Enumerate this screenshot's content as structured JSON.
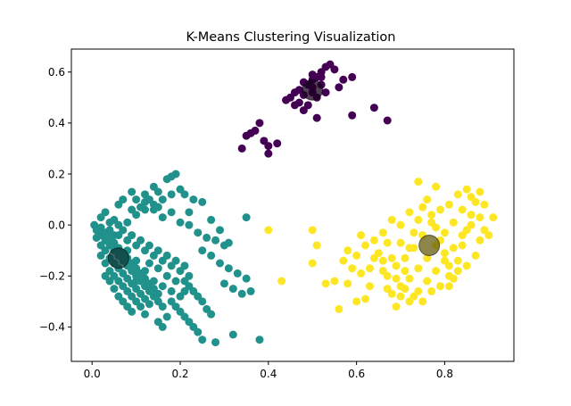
{
  "chart_data": {
    "type": "scatter",
    "title": "K-Means Clustering Visualization",
    "xlabel": "",
    "ylabel": "",
    "xlim": [
      -0.047,
      0.957
    ],
    "ylim": [
      -0.535,
      0.69
    ],
    "xticks": [
      0.0,
      0.2,
      0.4,
      0.6,
      0.8
    ],
    "xtick_labels": [
      "0.0",
      "0.2",
      "0.4",
      "0.6",
      "0.8"
    ],
    "yticks": [
      -0.4,
      -0.2,
      0.0,
      0.2,
      0.4,
      0.6
    ],
    "ytick_labels": [
      "−0.4",
      "−0.2",
      "0.0",
      "0.2",
      "0.4",
      "0.6"
    ],
    "grid": false,
    "legend": "none",
    "series": [
      {
        "color": "#440154",
        "points": [
          [
            0.5,
            0.57
          ],
          [
            0.52,
            0.6
          ],
          [
            0.53,
            0.62
          ],
          [
            0.54,
            0.63
          ],
          [
            0.55,
            0.61
          ],
          [
            0.51,
            0.58
          ],
          [
            0.49,
            0.55
          ],
          [
            0.47,
            0.53
          ],
          [
            0.48,
            0.56
          ],
          [
            0.5,
            0.54
          ],
          [
            0.52,
            0.55
          ],
          [
            0.46,
            0.52
          ],
          [
            0.45,
            0.5
          ],
          [
            0.44,
            0.49
          ],
          [
            0.47,
            0.48
          ],
          [
            0.48,
            0.45
          ],
          [
            0.49,
            0.47
          ],
          [
            0.51,
            0.5
          ],
          [
            0.53,
            0.52
          ],
          [
            0.56,
            0.54
          ],
          [
            0.57,
            0.57
          ],
          [
            0.59,
            0.58
          ],
          [
            0.51,
            0.42
          ],
          [
            0.59,
            0.43
          ],
          [
            0.64,
            0.46
          ],
          [
            0.67,
            0.41
          ],
          [
            0.35,
            0.35
          ],
          [
            0.36,
            0.36
          ],
          [
            0.37,
            0.37
          ],
          [
            0.38,
            0.4
          ],
          [
            0.39,
            0.33
          ],
          [
            0.4,
            0.31
          ],
          [
            0.42,
            0.32
          ],
          [
            0.34,
            0.3
          ],
          [
            0.4,
            0.28
          ],
          [
            0.46,
            0.47
          ],
          [
            0.5,
            0.52
          ],
          [
            0.48,
            0.51
          ],
          [
            0.52,
            0.58
          ],
          [
            0.5,
            0.59
          ]
        ]
      },
      {
        "color": "#21918c",
        "points": [
          [
            0.005,
            0.0
          ],
          [
            0.01,
            -0.02
          ],
          [
            0.02,
            -0.04
          ],
          [
            0.03,
            -0.06
          ],
          [
            0.04,
            -0.08
          ],
          [
            0.05,
            -0.1
          ],
          [
            0.06,
            -0.12
          ],
          [
            0.07,
            -0.14
          ],
          [
            0.08,
            -0.16
          ],
          [
            0.09,
            -0.18
          ],
          [
            0.1,
            -0.2
          ],
          [
            0.11,
            -0.22
          ],
          [
            0.12,
            -0.24
          ],
          [
            0.13,
            -0.26
          ],
          [
            0.14,
            -0.28
          ],
          [
            0.15,
            -0.3
          ],
          [
            0.16,
            -0.32
          ],
          [
            0.02,
            -0.01
          ],
          [
            0.03,
            -0.03
          ],
          [
            0.04,
            -0.05
          ],
          [
            0.05,
            -0.07
          ],
          [
            0.06,
            -0.09
          ],
          [
            0.07,
            -0.11
          ],
          [
            0.08,
            -0.13
          ],
          [
            0.09,
            -0.15
          ],
          [
            0.1,
            -0.17
          ],
          [
            0.11,
            -0.19
          ],
          [
            0.12,
            -0.21
          ],
          [
            0.13,
            -0.23
          ],
          [
            0.14,
            -0.25
          ],
          [
            0.15,
            -0.27
          ],
          [
            0.01,
            -0.05
          ],
          [
            0.02,
            -0.08
          ],
          [
            0.03,
            -0.1
          ],
          [
            0.04,
            -0.13
          ],
          [
            0.05,
            -0.15
          ],
          [
            0.06,
            -0.17
          ],
          [
            0.07,
            -0.19
          ],
          [
            0.08,
            -0.21
          ],
          [
            0.09,
            -0.23
          ],
          [
            0.1,
            -0.25
          ],
          [
            0.11,
            -0.27
          ],
          [
            0.12,
            -0.29
          ],
          [
            0.13,
            -0.31
          ],
          [
            0.02,
            -0.12
          ],
          [
            0.03,
            -0.15
          ],
          [
            0.04,
            -0.18
          ],
          [
            0.05,
            -0.2
          ],
          [
            0.06,
            -0.22
          ],
          [
            0.07,
            -0.24
          ],
          [
            0.08,
            -0.26
          ],
          [
            0.09,
            -0.28
          ],
          [
            0.1,
            -0.3
          ],
          [
            0.11,
            -0.32
          ],
          [
            0.06,
            -0.04
          ],
          [
            0.08,
            -0.06
          ],
          [
            0.1,
            -0.08
          ],
          [
            0.12,
            -0.1
          ],
          [
            0.14,
            -0.12
          ],
          [
            0.16,
            -0.14
          ],
          [
            0.18,
            -0.16
          ],
          [
            0.2,
            -0.18
          ],
          [
            0.22,
            -0.2
          ],
          [
            0.07,
            -0.02
          ],
          [
            0.09,
            -0.04
          ],
          [
            0.11,
            -0.06
          ],
          [
            0.13,
            -0.08
          ],
          [
            0.15,
            -0.1
          ],
          [
            0.17,
            -0.12
          ],
          [
            0.19,
            -0.14
          ],
          [
            0.21,
            -0.16
          ],
          [
            0.02,
            0.03
          ],
          [
            0.04,
            0.01
          ],
          [
            0.03,
            0.05
          ],
          [
            0.06,
            0.0
          ],
          [
            0.05,
            0.02
          ],
          [
            0.08,
            0.01
          ],
          [
            0.1,
            0.04
          ],
          [
            0.12,
            0.06
          ],
          [
            0.14,
            0.08
          ],
          [
            0.16,
            0.1
          ],
          [
            0.18,
            0.12
          ],
          [
            0.2,
            0.14
          ],
          [
            0.17,
            0.18
          ],
          [
            0.18,
            0.19
          ],
          [
            0.19,
            0.2
          ],
          [
            0.15,
            0.13
          ],
          [
            0.13,
            0.1
          ],
          [
            0.12,
            0.09
          ],
          [
            0.11,
            0.07
          ],
          [
            0.09,
            0.06
          ],
          [
            0.06,
            0.08
          ],
          [
            0.07,
            0.1
          ],
          [
            0.09,
            0.13
          ],
          [
            0.14,
            0.06
          ],
          [
            0.15,
            0.07
          ],
          [
            0.16,
            0.03
          ],
          [
            0.18,
            0.05
          ],
          [
            0.21,
            0.12
          ],
          [
            0.23,
            0.1
          ],
          [
            0.25,
            0.09
          ],
          [
            0.2,
            0.01
          ],
          [
            0.22,
            0.0
          ],
          [
            0.24,
            -0.03
          ],
          [
            0.26,
            -0.05
          ],
          [
            0.28,
            -0.06
          ],
          [
            0.3,
            -0.08
          ],
          [
            0.35,
            0.03
          ],
          [
            0.27,
            0.02
          ],
          [
            0.29,
            -0.02
          ],
          [
            0.31,
            -0.07
          ],
          [
            0.25,
            -0.1
          ],
          [
            0.27,
            -0.12
          ],
          [
            0.29,
            -0.15
          ],
          [
            0.31,
            -0.17
          ],
          [
            0.33,
            -0.19
          ],
          [
            0.35,
            -0.21
          ],
          [
            0.3,
            -0.23
          ],
          [
            0.32,
            -0.25
          ],
          [
            0.34,
            -0.27
          ],
          [
            0.36,
            -0.26
          ],
          [
            0.21,
            -0.22
          ],
          [
            0.22,
            -0.24
          ],
          [
            0.23,
            -0.26
          ],
          [
            0.24,
            -0.28
          ],
          [
            0.25,
            -0.3
          ],
          [
            0.26,
            -0.33
          ],
          [
            0.27,
            -0.35
          ],
          [
            0.18,
            -0.3
          ],
          [
            0.19,
            -0.32
          ],
          [
            0.2,
            -0.34
          ],
          [
            0.21,
            -0.36
          ],
          [
            0.22,
            -0.38
          ],
          [
            0.23,
            -0.4
          ],
          [
            0.24,
            -0.42
          ],
          [
            0.25,
            -0.45
          ],
          [
            0.28,
            -0.46
          ],
          [
            0.32,
            -0.43
          ],
          [
            0.38,
            -0.45
          ],
          [
            0.17,
            -0.36
          ],
          [
            0.16,
            -0.4
          ],
          [
            0.15,
            -0.38
          ],
          [
            0.12,
            -0.35
          ],
          [
            0.09,
            -0.34
          ],
          [
            0.2,
            -0.28
          ],
          [
            0.18,
            -0.26
          ],
          [
            0.16,
            -0.24
          ],
          [
            0.14,
            -0.22
          ],
          [
            0.12,
            -0.18
          ],
          [
            0.1,
            -0.14
          ],
          [
            0.08,
            -0.1
          ],
          [
            0.17,
            -0.2
          ],
          [
            0.19,
            -0.22
          ],
          [
            0.21,
            -0.26
          ],
          [
            0.03,
            -0.2
          ],
          [
            0.04,
            -0.22
          ],
          [
            0.05,
            -0.25
          ],
          [
            0.06,
            -0.28
          ],
          [
            0.07,
            -0.3
          ],
          [
            0.08,
            -0.32
          ],
          [
            0.1,
            -0.22
          ],
          [
            0.13,
            -0.15
          ],
          [
            0.15,
            -0.17
          ],
          [
            0.04,
            -0.02
          ],
          [
            0.05,
            -0.04
          ],
          [
            0.22,
            0.05
          ],
          [
            0.14,
            0.15
          ],
          [
            0.12,
            0.12
          ],
          [
            0.1,
            0.1
          ]
        ]
      },
      {
        "color": "#fde725",
        "points": [
          [
            0.4,
            -0.02
          ],
          [
            0.43,
            -0.22
          ],
          [
            0.5,
            -0.02
          ],
          [
            0.51,
            -0.08
          ],
          [
            0.5,
            -0.15
          ],
          [
            0.53,
            -0.23
          ],
          [
            0.55,
            -0.22
          ],
          [
            0.56,
            -0.33
          ],
          [
            0.58,
            -0.23
          ],
          [
            0.58,
            -0.1
          ],
          [
            0.6,
            -0.12
          ],
          [
            0.61,
            -0.19
          ],
          [
            0.6,
            -0.3
          ],
          [
            0.62,
            -0.29
          ],
          [
            0.63,
            -0.17
          ],
          [
            0.62,
            -0.08
          ],
          [
            0.64,
            -0.06
          ],
          [
            0.65,
            -0.11
          ],
          [
            0.66,
            -0.14
          ],
          [
            0.67,
            -0.2
          ],
          [
            0.68,
            -0.27
          ],
          [
            0.69,
            -0.32
          ],
          [
            0.7,
            -0.24
          ],
          [
            0.71,
            -0.18
          ],
          [
            0.72,
            -0.09
          ],
          [
            0.73,
            -0.03
          ],
          [
            0.74,
            0.02
          ],
          [
            0.75,
            0.07
          ],
          [
            0.74,
            0.17
          ],
          [
            0.78,
            0.15
          ],
          [
            0.76,
            0.1
          ],
          [
            0.77,
            0.04
          ],
          [
            0.78,
            -0.01
          ],
          [
            0.79,
            -0.06
          ],
          [
            0.8,
            -0.11
          ],
          [
            0.81,
            -0.16
          ],
          [
            0.82,
            -0.21
          ],
          [
            0.83,
            -0.14
          ],
          [
            0.84,
            -0.08
          ],
          [
            0.85,
            -0.02
          ],
          [
            0.86,
            0.04
          ],
          [
            0.87,
            0.09
          ],
          [
            0.88,
            0.13
          ],
          [
            0.85,
            0.14
          ],
          [
            0.83,
            0.12
          ],
          [
            0.81,
            0.08
          ],
          [
            0.79,
            0.06
          ],
          [
            0.77,
            0.01
          ],
          [
            0.75,
            -0.04
          ],
          [
            0.73,
            -0.09
          ],
          [
            0.71,
            -0.13
          ],
          [
            0.69,
            -0.16
          ],
          [
            0.67,
            -0.25
          ],
          [
            0.7,
            -0.28
          ],
          [
            0.72,
            -0.3
          ],
          [
            0.74,
            -0.26
          ],
          [
            0.76,
            -0.22
          ],
          [
            0.78,
            -0.18
          ],
          [
            0.8,
            -0.14
          ],
          [
            0.82,
            -0.09
          ],
          [
            0.84,
            -0.04
          ],
          [
            0.86,
            0.0
          ],
          [
            0.88,
            0.03
          ],
          [
            0.89,
            -0.02
          ],
          [
            0.9,
            -0.04
          ],
          [
            0.91,
            0.03
          ],
          [
            0.89,
            0.08
          ],
          [
            0.87,
            -0.12
          ],
          [
            0.85,
            -0.16
          ],
          [
            0.83,
            -0.18
          ],
          [
            0.81,
            -0.2
          ],
          [
            0.79,
            -0.24
          ],
          [
            0.77,
            -0.26
          ],
          [
            0.75,
            -0.3
          ],
          [
            0.73,
            -0.28
          ],
          [
            0.71,
            -0.25
          ],
          [
            0.69,
            -0.21
          ],
          [
            0.68,
            -0.13
          ],
          [
            0.67,
            -0.07
          ],
          [
            0.66,
            -0.03
          ],
          [
            0.68,
            0.02
          ],
          [
            0.7,
            0.0
          ],
          [
            0.72,
            0.05
          ],
          [
            0.76,
            -0.13
          ],
          [
            0.78,
            -0.08
          ],
          [
            0.8,
            -0.03
          ],
          [
            0.82,
            0.01
          ],
          [
            0.84,
            0.06
          ],
          [
            0.86,
            0.11
          ],
          [
            0.74,
            -0.17
          ],
          [
            0.72,
            -0.21
          ],
          [
            0.7,
            -0.07
          ],
          [
            0.64,
            -0.13
          ],
          [
            0.63,
            -0.24
          ],
          [
            0.61,
            -0.04
          ],
          [
            0.59,
            -0.17
          ],
          [
            0.57,
            -0.14
          ],
          [
            0.66,
            -0.18
          ],
          [
            0.81,
            -0.24
          ],
          [
            0.88,
            -0.06
          ]
        ]
      }
    ],
    "centroids": [
      {
        "x": 0.5,
        "y": 0.53,
        "color": "#1a0020"
      },
      {
        "x": 0.06,
        "y": -0.13,
        "color": "#0d3a38"
      },
      {
        "x": 0.765,
        "y": -0.08,
        "color": "#655d0f"
      }
    ]
  }
}
